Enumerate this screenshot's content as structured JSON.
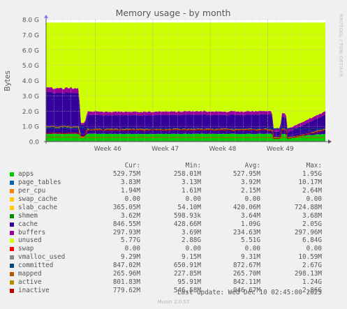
{
  "chart_data": {
    "type": "area",
    "title": "Memory usage - by month",
    "ylabel": "Bytes",
    "side_label": "RRDTOOL / TOBI OETIKER",
    "ylim": [
      0,
      8000000000
    ],
    "yticks": [
      {
        "value": 0,
        "label": "0.0"
      },
      {
        "value": 1000000000,
        "label": "1.0 G"
      },
      {
        "value": 2000000000,
        "label": "2.0 G"
      },
      {
        "value": 3000000000,
        "label": "3.0 G"
      },
      {
        "value": 4000000000,
        "label": "4.0 G"
      },
      {
        "value": 5000000000,
        "label": "5.0 G"
      },
      {
        "value": 6000000000,
        "label": "6.0 G"
      },
      {
        "value": 7000000000,
        "label": "7.0 G"
      },
      {
        "value": 8000000000,
        "label": "8.0 G"
      }
    ],
    "xlim": [
      0,
      34
    ],
    "x_unit": "days from start of month view",
    "xticks": [
      {
        "value": 7.5,
        "label": "Week 46"
      },
      {
        "value": 14.5,
        "label": "Week 47"
      },
      {
        "value": 21.5,
        "label": "Week 48"
      },
      {
        "value": 28.5,
        "label": "Week 49"
      }
    ],
    "grid": true,
    "total_bytes": 7.8,
    "stack_order": [
      "apps",
      "page_tables",
      "per_cpu",
      "swap_cache",
      "slab_cache",
      "cache",
      "buffers",
      "unused",
      "swap"
    ],
    "series": [
      {
        "name": "apps",
        "color": "#00cc00",
        "x": [
          0,
          4,
          4.2,
          4.7,
          5,
          10,
          15,
          20,
          27.5,
          27.7,
          28.5,
          28.7,
          29.2,
          29.4,
          34
        ],
        "values": [
          0.5,
          0.5,
          0.35,
          0.35,
          0.5,
          0.5,
          0.5,
          0.5,
          0.5,
          0.3,
          0.3,
          0.5,
          0.5,
          0.3,
          0.5
        ]
      },
      {
        "name": "page_tables",
        "color": "#0066b3",
        "x": [
          0,
          34
        ],
        "values": [
          0.005,
          0.005
        ]
      },
      {
        "name": "per_cpu",
        "color": "#ff8000",
        "x": [
          0,
          34
        ],
        "values": [
          0.003,
          0.003
        ]
      },
      {
        "name": "swap_cache",
        "color": "#ffcc00",
        "x": [
          0,
          34
        ],
        "values": [
          0.0,
          0.0
        ]
      },
      {
        "name": "slab_cache",
        "color": "#330099",
        "x": [
          0,
          4,
          4.2,
          4.7,
          5,
          20,
          27.5,
          27.7,
          28.5,
          28.7,
          29.2,
          29.4,
          34
        ],
        "values": [
          0.55,
          0.55,
          0.15,
          0.15,
          0.37,
          0.37,
          0.37,
          0.1,
          0.1,
          0.37,
          0.37,
          0.1,
          0.37
        ]
      },
      {
        "name": "cache",
        "color": "#330099",
        "x": [
          0,
          4,
          4.2,
          4.7,
          5,
          20,
          27.5,
          27.7,
          28.5,
          28.7,
          29.2,
          29.4,
          34
        ],
        "values": [
          2.15,
          2.15,
          0.6,
          0.6,
          0.85,
          0.88,
          0.9,
          0.25,
          0.25,
          0.75,
          0.75,
          0.2,
          0.88
        ]
      },
      {
        "name": "buffers",
        "color": "#990099",
        "x": [
          0,
          4,
          4.2,
          4.7,
          5,
          34
        ],
        "values": [
          0.3,
          0.3,
          0.12,
          0.12,
          0.22,
          0.22
        ]
      },
      {
        "name": "unused",
        "color": "#ccff00",
        "x": [
          0,
          4,
          4.2,
          4.7,
          5,
          20,
          27.5,
          27.7,
          28.5,
          28.7,
          29.2,
          29.4,
          34
        ],
        "values": [
          4.29,
          4.29,
          6.57,
          6.57,
          5.84,
          5.81,
          5.79,
          6.83,
          6.83,
          5.97,
          5.97,
          6.98,
          5.81
        ]
      },
      {
        "name": "swap",
        "color": "#ff0000",
        "x": [
          0,
          34
        ],
        "values": [
          0,
          0
        ]
      },
      {
        "name": "shmem",
        "color": "#008f00",
        "line": true,
        "x": [
          0,
          34
        ],
        "values": [
          0.004,
          0.004
        ]
      },
      {
        "name": "vmalloc_used",
        "color": "#888888",
        "line": true,
        "x": [
          0,
          34
        ],
        "values": [
          0.009,
          0.009
        ]
      },
      {
        "name": "committed",
        "color": "#00487d",
        "line": true,
        "x": [
          0,
          4,
          4.2,
          4.7,
          5,
          28.5,
          28.7,
          34
        ],
        "values": [
          0.87,
          0.87,
          0.9,
          0.9,
          0.84,
          0.84,
          0.84,
          0.85
        ]
      },
      {
        "name": "mapped",
        "color": "#b35a00",
        "line": true,
        "x": [
          0,
          4,
          4.2,
          4.7,
          5,
          34
        ],
        "values": [
          0.29,
          0.29,
          0.24,
          0.24,
          0.27,
          0.27
        ]
      },
      {
        "name": "active",
        "color": "#b38f00",
        "line": true,
        "x": [
          0,
          4,
          4.2,
          4.7,
          5,
          27.5,
          27.7,
          28.5,
          28.7,
          29.2,
          29.4,
          34
        ],
        "values": [
          0.95,
          0.95,
          0.3,
          0.3,
          0.8,
          0.8,
          0.2,
          0.2,
          0.8,
          0.8,
          0.2,
          0.8
        ]
      },
      {
        "name": "inactive",
        "color": "#c00000",
        "line": true,
        "x": [
          0,
          4,
          4.2,
          4.7,
          5,
          27.5,
          27.7,
          28.5,
          28.7,
          29.2,
          29.4,
          34
        ],
        "values": [
          0.55,
          0.55,
          0.35,
          0.35,
          0.75,
          0.75,
          0.2,
          0.2,
          0.75,
          0.75,
          0.2,
          0.75
        ]
      }
    ]
  },
  "legend": {
    "headers": [
      "Cur:",
      "Min:",
      "Avg:",
      "Max:"
    ],
    "rows": [
      {
        "name": "apps",
        "color": "#00cc00",
        "cur": "529.75M",
        "min": "258.01M",
        "avg": "527.95M",
        "max": "1.95G"
      },
      {
        "name": "page_tables",
        "color": "#0066b3",
        "cur": "3.83M",
        "min": "3.13M",
        "avg": "3.92M",
        "max": "10.17M"
      },
      {
        "name": "per_cpu",
        "color": "#ff8000",
        "cur": "1.94M",
        "min": "1.61M",
        "avg": "2.15M",
        "max": "2.64M"
      },
      {
        "name": "swap_cache",
        "color": "#ffcc00",
        "cur": "0.00",
        "min": "0.00",
        "avg": "0.00",
        "max": "0.00"
      },
      {
        "name": "slab_cache",
        "color": "#ffcc00",
        "cur": "365.05M",
        "min": "54.10M",
        "avg": "420.06M",
        "max": "724.88M"
      },
      {
        "name": "shmem",
        "color": "#008f00",
        "cur": "3.62M",
        "min": "598.93k",
        "avg": "3.64M",
        "max": "3.68M"
      },
      {
        "name": "cache",
        "color": "#330099",
        "cur": "846.55M",
        "min": "428.66M",
        "avg": "1.09G",
        "max": "2.05G"
      },
      {
        "name": "buffers",
        "color": "#990099",
        "cur": "297.93M",
        "min": "3.69M",
        "avg": "234.63M",
        "max": "297.96M"
      },
      {
        "name": "unused",
        "color": "#ccff00",
        "cur": "5.77G",
        "min": "2.88G",
        "avg": "5.51G",
        "max": "6.84G"
      },
      {
        "name": "swap",
        "color": "#ff0000",
        "cur": "0.00",
        "min": "0.00",
        "avg": "0.00",
        "max": "0.00"
      },
      {
        "name": "vmalloc_used",
        "color": "#888888",
        "cur": "9.29M",
        "min": "9.15M",
        "avg": "9.31M",
        "max": "10.59M"
      },
      {
        "name": "committed",
        "color": "#00487d",
        "cur": "847.02M",
        "min": "650.91M",
        "avg": "872.67M",
        "max": "2.67G"
      },
      {
        "name": "mapped",
        "color": "#b35a00",
        "cur": "265.96M",
        "min": "227.85M",
        "avg": "265.70M",
        "max": "298.13M"
      },
      {
        "name": "active",
        "color": "#b38f00",
        "cur": "801.83M",
        "min": "95.91M",
        "avg": "842.11M",
        "max": "1.24G"
      },
      {
        "name": "inactive",
        "color": "#c00000",
        "cur": "779.62M",
        "min": "546.58M",
        "avg": "946.67M",
        "max": "2.86G"
      }
    ]
  },
  "footer": {
    "last_update": "Last update: Wed Dec 10 02:45:00 2025",
    "version": "Munin 2.0.57"
  }
}
